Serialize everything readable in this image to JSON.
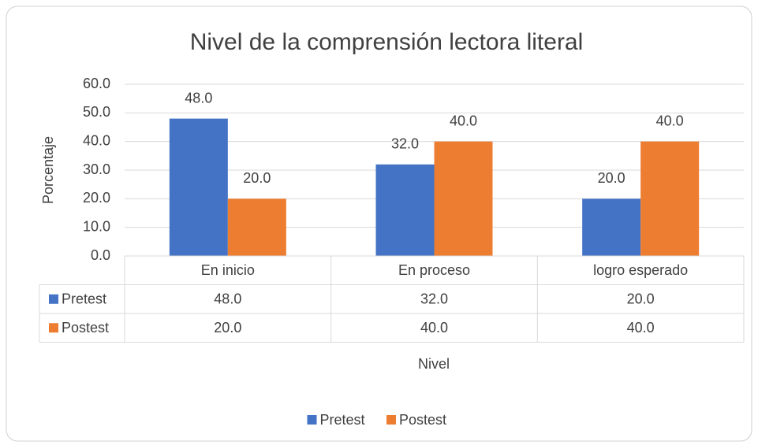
{
  "chart_data": {
    "type": "bar",
    "title": "Nivel de la comprensión lectora  literal",
    "x_label": "Nivel",
    "y_label": "Porcentaje",
    "categories": [
      "En inicio",
      "En proceso",
      "logro esperado"
    ],
    "series": [
      {
        "name": "Pretest",
        "color": "#4472c4",
        "values": [
          48,
          32,
          20
        ],
        "value_labels": [
          "48.0",
          "32.0",
          "20.0"
        ]
      },
      {
        "name": "Postest",
        "color": "#ed7d31",
        "values": [
          20,
          40,
          40
        ],
        "value_labels": [
          "20.0",
          "40.0",
          "40.0"
        ]
      }
    ],
    "ylim": [
      0,
      60
    ],
    "yticks": [
      {
        "value": 0,
        "label": "0.0"
      },
      {
        "value": 10,
        "label": "10.0"
      },
      {
        "value": 20,
        "label": "20.0"
      },
      {
        "value": 30,
        "label": "30.0"
      },
      {
        "value": 40,
        "label": "40.0"
      },
      {
        "value": 50,
        "label": "50.0"
      },
      {
        "value": 60,
        "label": "60.0"
      }
    ],
    "grid": true,
    "legend": "bottom"
  }
}
